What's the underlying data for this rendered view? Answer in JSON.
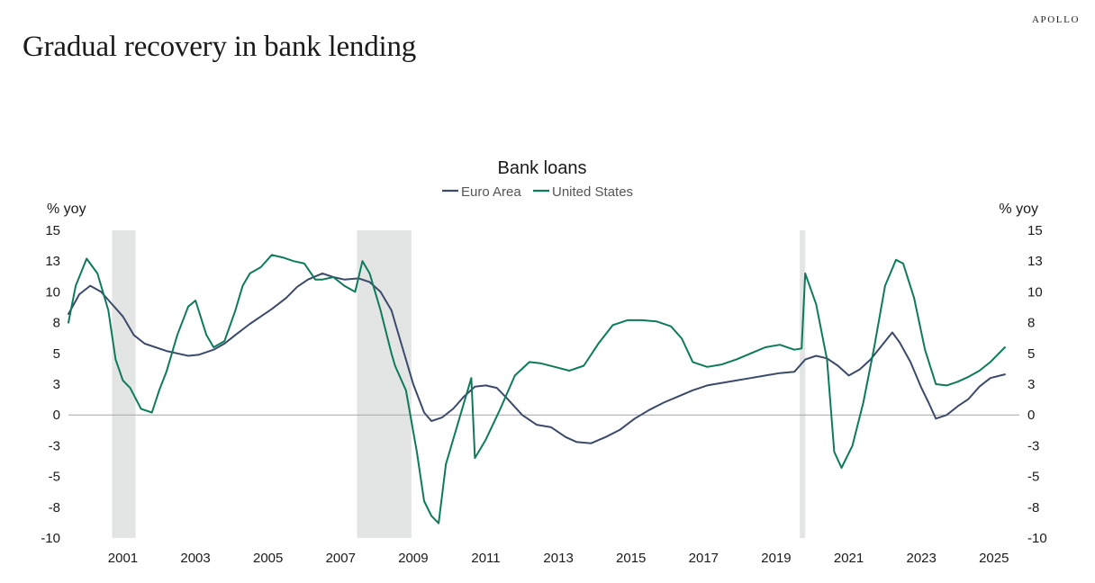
{
  "header": {
    "title": "Gradual recovery in bank lending",
    "brand": "APOLLO"
  },
  "chart_data": {
    "type": "line",
    "title": "Bank loans",
    "ylabel_left": "% yoy",
    "ylabel_right": "% yoy",
    "legend_position": "top-center",
    "ylim": [
      -10,
      15
    ],
    "xlim": [
      2000.0,
      2026.2
    ],
    "y_ticks": [
      15,
      13,
      10,
      8,
      5,
      3,
      0,
      -3,
      -5,
      -8,
      -10
    ],
    "y_tick_labels": [
      "15",
      "13",
      "10",
      "8",
      "5",
      "3",
      "0",
      "-3",
      "-5",
      "-8",
      "-10"
    ],
    "y_tick_values": [
      15,
      12.5,
      10,
      7.5,
      5,
      2.5,
      0,
      -2.5,
      -5,
      -7.5,
      -10
    ],
    "x_ticks": [
      2001,
      2003,
      2005,
      2007,
      2009,
      2011,
      2013,
      2015,
      2017,
      2019,
      2021,
      2023,
      2025
    ],
    "recessions": [
      [
        2001.2,
        2001.85
      ],
      [
        2007.95,
        2009.45
      ],
      [
        2020.15,
        2020.3
      ]
    ],
    "colors": {
      "Euro Area": "#3b4a6b",
      "United States": "#0e7a5c",
      "recession": "#e3e4e4",
      "zero_line": "#a6a6a6"
    },
    "series": [
      {
        "name": "Euro Area",
        "x": [
          2000.0,
          2000.3,
          2000.6,
          2000.9,
          2001.2,
          2001.5,
          2001.8,
          2002.1,
          2002.4,
          2002.7,
          2003.0,
          2003.3,
          2003.6,
          2004.0,
          2004.3,
          2004.6,
          2005.0,
          2005.3,
          2005.6,
          2006.0,
          2006.3,
          2006.6,
          2007.0,
          2007.3,
          2007.6,
          2008.0,
          2008.3,
          2008.6,
          2008.9,
          2009.2,
          2009.5,
          2009.8,
          2010.0,
          2010.3,
          2010.6,
          2010.9,
          2011.2,
          2011.5,
          2011.8,
          2012.1,
          2012.5,
          2012.9,
          2013.3,
          2013.7,
          2014.0,
          2014.4,
          2014.8,
          2015.2,
          2015.6,
          2016.0,
          2016.4,
          2016.8,
          2017.2,
          2017.6,
          2018.0,
          2018.4,
          2018.8,
          2019.2,
          2019.6,
          2020.0,
          2020.3,
          2020.6,
          2020.9,
          2021.2,
          2021.5,
          2021.8,
          2022.1,
          2022.4,
          2022.7,
          2022.9,
          2023.2,
          2023.5,
          2023.7,
          2023.9,
          2024.2,
          2024.5,
          2024.8,
          2025.1,
          2025.4,
          2025.8
        ],
        "values": [
          8.2,
          9.8,
          10.5,
          10.0,
          9.0,
          8.0,
          6.5,
          5.8,
          5.5,
          5.2,
          5.0,
          4.8,
          4.9,
          5.3,
          5.8,
          6.5,
          7.4,
          8.0,
          8.6,
          9.5,
          10.4,
          11.0,
          11.5,
          11.2,
          11.0,
          11.1,
          10.8,
          10.0,
          8.5,
          5.5,
          2.5,
          0.2,
          -0.5,
          -0.2,
          0.5,
          1.5,
          2.3,
          2.4,
          2.2,
          1.3,
          0.0,
          -0.8,
          -1.0,
          -1.8,
          -2.2,
          -2.3,
          -1.8,
          -1.2,
          -0.3,
          0.4,
          1.0,
          1.5,
          2.0,
          2.4,
          2.6,
          2.8,
          3.0,
          3.2,
          3.4,
          3.5,
          4.5,
          4.8,
          4.6,
          4.0,
          3.2,
          3.7,
          4.5,
          5.6,
          6.7,
          5.9,
          4.3,
          2.2,
          1.0,
          -0.3,
          0.0,
          0.7,
          1.3,
          2.3,
          3.0,
          3.3
        ]
      },
      {
        "name": "United States",
        "x": [
          2000.0,
          2000.2,
          2000.5,
          2000.8,
          2001.1,
          2001.3,
          2001.5,
          2001.7,
          2002.0,
          2002.3,
          2002.5,
          2002.7,
          2003.0,
          2003.3,
          2003.5,
          2003.8,
          2004.0,
          2004.3,
          2004.6,
          2004.8,
          2005.0,
          2005.3,
          2005.6,
          2005.9,
          2006.2,
          2006.5,
          2006.8,
          2007.0,
          2007.3,
          2007.6,
          2007.9,
          2008.1,
          2008.3,
          2008.6,
          2008.9,
          2009.0,
          2009.3,
          2009.6,
          2009.8,
          2010.0,
          2010.2,
          2010.4,
          2010.6,
          2010.9,
          2011.1,
          2011.2,
          2011.5,
          2011.9,
          2012.3,
          2012.7,
          2013.0,
          2013.4,
          2013.8,
          2014.2,
          2014.6,
          2015.0,
          2015.4,
          2015.8,
          2016.2,
          2016.6,
          2016.9,
          2017.2,
          2017.6,
          2018.0,
          2018.4,
          2018.8,
          2019.2,
          2019.6,
          2020.0,
          2020.2,
          2020.3,
          2020.6,
          2020.9,
          2021.1,
          2021.3,
          2021.6,
          2021.9,
          2022.2,
          2022.5,
          2022.8,
          2023.0,
          2023.3,
          2023.6,
          2023.9,
          2024.2,
          2024.5,
          2024.8,
          2025.1,
          2025.4,
          2025.8
        ],
        "values": [
          7.5,
          10.5,
          12.7,
          11.5,
          8.5,
          4.5,
          2.8,
          2.2,
          0.5,
          0.2,
          2.0,
          3.5,
          6.5,
          8.8,
          9.3,
          6.5,
          5.5,
          6.0,
          8.5,
          10.5,
          11.5,
          12.0,
          13.0,
          12.8,
          12.5,
          12.3,
          11.0,
          11.0,
          11.2,
          10.5,
          10.0,
          12.5,
          11.5,
          8.5,
          5.0,
          4.0,
          2.0,
          -3.0,
          -7.0,
          -8.2,
          -8.8,
          -4.0,
          -2.0,
          1.0,
          3.0,
          -3.5,
          -2.0,
          0.5,
          3.2,
          4.3,
          4.2,
          3.9,
          3.6,
          4.0,
          5.8,
          7.3,
          7.7,
          7.7,
          7.6,
          7.2,
          6.2,
          4.3,
          3.9,
          4.1,
          4.5,
          5.0,
          5.5,
          5.7,
          5.3,
          5.4,
          11.5,
          9.0,
          4.5,
          -3.0,
          -4.3,
          -2.5,
          1.0,
          5.5,
          10.5,
          12.6,
          12.3,
          9.5,
          5.3,
          2.5,
          2.4,
          2.7,
          3.1,
          3.6,
          4.3,
          5.5
        ]
      }
    ]
  }
}
